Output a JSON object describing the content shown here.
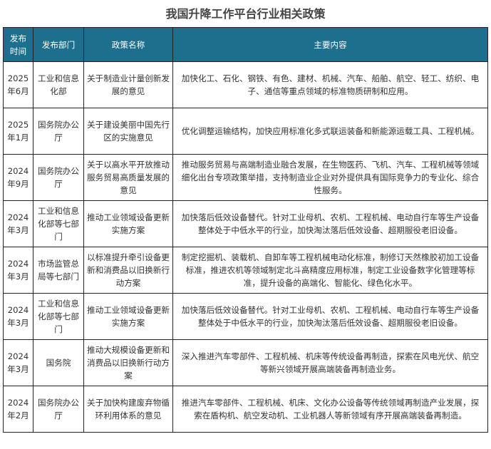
{
  "title": "我国升降工作平台行业相关政策",
  "headers": [
    "发布时间",
    "发布部门",
    "政策名称",
    "主要内容"
  ],
  "rows": [
    {
      "date": "2025年6月",
      "dept": "工业和信息化部",
      "name": "关于制造业计量创新发展的意见",
      "content": "加快化工、石化、钢铁、有色、建材、机械、汽车、船舶、航空、轻工、纺织、电子、通信等重点领域的标准物质研制和应用。"
    },
    {
      "date": "2025年1月",
      "dept": "国务院办公厅",
      "name": "关于建设美丽中国先行区的实施意见",
      "content": "优化调整运输结构，加快应用标准化多式联运装备和新能源运载工具、工程机械。"
    },
    {
      "date": "2024年9月",
      "dept": "国务院办公厅",
      "name": "关于以高水平开放推动服务贸易高质量发展的意见",
      "content": "推动服务贸易与高端制造业融合发展，在生物医药、飞机、汽车、工程机械等领域细化出台专项政策举措，支持制造业企业对外提供具有国际竞争力的专业化、综合性服务。"
    },
    {
      "date": "2024年3月",
      "dept": "工业和信息化部等七部门",
      "name": "推动工业领域设备更新实施方案",
      "content": "加快落后低效设备替代。针对工业母机、农机、工程机械、电动自行车等生产设备整体处于中低水平的行业，加快淘汰落后低效设备、超期服役老旧设备。"
    },
    {
      "date": "2024年3月",
      "dept": "市场监管总局等七部门",
      "name": "以标准提升牵引设备更新和消费品以旧换新行动方案",
      "content": "制定挖掘机、装载机、自卸车等工程机械电动化标准，制修订天然橡胶初加工设备标准，推进农机等领域制定北斗高精度应用标准，制定工业设备数字化管理等标准，提升设备的高端化、智能化、绿色化水平。"
    },
    {
      "date": "2024年3月",
      "dept": "工业和信息化部等七部门",
      "name": "推动工业领域设备更新实施方案",
      "content": "加快落后低效设备替代。针对工业母机、农机、工程机械、电动自行车等生产设备整体处于中低水平的行业，加快淘汰落后低效设备、超期服役老旧设备。"
    },
    {
      "date": "2024年3月",
      "dept": "国务院",
      "name": "推动大规模设备更新和消费品以旧换新行动方案",
      "content": "深入推进汽车零部件、工程机械、机床等传统设备再制造，探索在风电光伏、航空等新兴领域开展高端装备再制造业务。"
    },
    {
      "date": "2024年2月",
      "dept": "国务院办公厅",
      "name": "关于加快构建废弃物循环利用体系的意见",
      "content": "推进汽车零部件、工程机械、机床、文化办公设备等传统领域再制造产业发展，探索在盾构机、航空发动机、工业机器人等新领域有序开展高端装备再制造。"
    }
  ],
  "colors": {
    "header_bg": "#1e6e8e",
    "header_text": "#ffffff"
  }
}
